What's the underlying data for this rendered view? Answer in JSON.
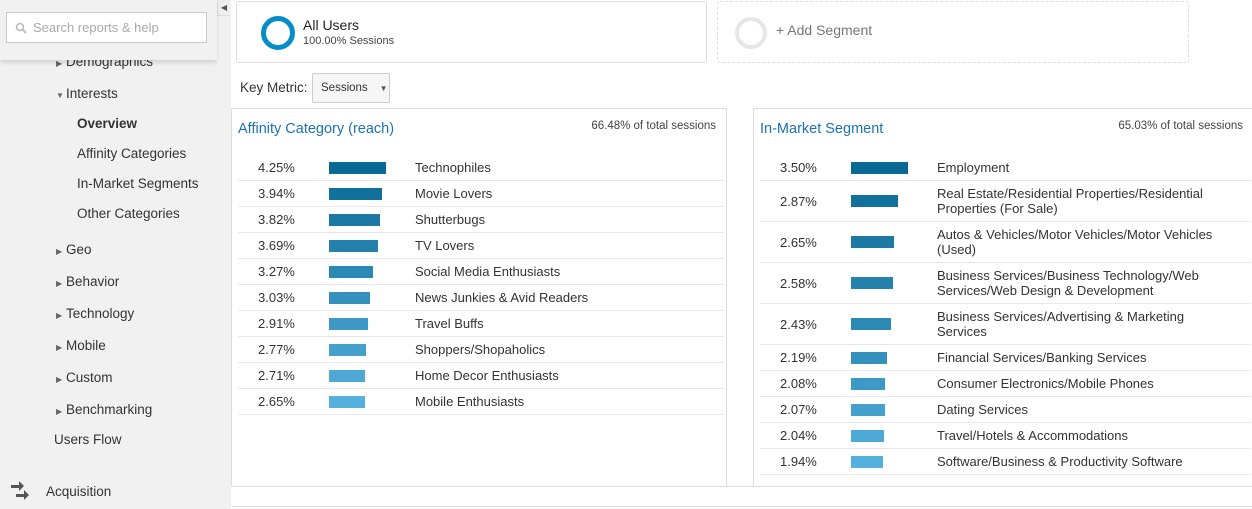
{
  "sidebar": {
    "search_placeholder": "Search reports & help",
    "items": [
      {
        "label": "Demographics",
        "state": "collapsed"
      },
      {
        "label": "Interests",
        "state": "expanded"
      },
      {
        "label": "Overview",
        "active": true
      },
      {
        "label": "Affinity Categories"
      },
      {
        "label": "In-Market Segments"
      },
      {
        "label": "Other Categories"
      },
      {
        "label": "Geo",
        "state": "collapsed"
      },
      {
        "label": "Behavior",
        "state": "collapsed"
      },
      {
        "label": "Technology",
        "state": "collapsed"
      },
      {
        "label": "Mobile",
        "state": "collapsed"
      },
      {
        "label": "Custom",
        "state": "collapsed"
      },
      {
        "label": "Benchmarking",
        "state": "collapsed"
      },
      {
        "label": "Users Flow"
      }
    ],
    "acquisition": "Acquisition"
  },
  "segments": {
    "all_users": "All Users",
    "all_users_sub": "100.00% Sessions",
    "add": "+ Add Segment"
  },
  "key_metric": {
    "label": "Key Metric:",
    "value": "Sessions"
  },
  "colors": {
    "accent": "#058dc7",
    "bar_dark": "#0a6994",
    "bar_light": "#56b0dd"
  },
  "affinity": {
    "title": "Affinity Category (reach)",
    "subtitle": "66.48% of total sessions",
    "rows": [
      {
        "pct": "4.25%",
        "value": 4.25,
        "label": "Technophiles"
      },
      {
        "pct": "3.94%",
        "value": 3.94,
        "label": "Movie Lovers"
      },
      {
        "pct": "3.82%",
        "value": 3.82,
        "label": "Shutterbugs"
      },
      {
        "pct": "3.69%",
        "value": 3.69,
        "label": "TV Lovers"
      },
      {
        "pct": "3.27%",
        "value": 3.27,
        "label": "Social Media Enthusiasts"
      },
      {
        "pct": "3.03%",
        "value": 3.03,
        "label": "News Junkies & Avid Readers"
      },
      {
        "pct": "2.91%",
        "value": 2.91,
        "label": "Travel Buffs"
      },
      {
        "pct": "2.77%",
        "value": 2.77,
        "label": "Shoppers/Shopaholics"
      },
      {
        "pct": "2.71%",
        "value": 2.71,
        "label": "Home Decor Enthusiasts"
      },
      {
        "pct": "2.65%",
        "value": 2.65,
        "label": "Mobile Enthusiasts"
      }
    ]
  },
  "inmarket": {
    "title": "In-Market Segment",
    "subtitle": "65.03% of total sessions",
    "rows": [
      {
        "pct": "3.50%",
        "value": 3.5,
        "label": "Employment"
      },
      {
        "pct": "2.87%",
        "value": 2.87,
        "label": "Real Estate/Residential Properties/Residential Properties (For Sale)"
      },
      {
        "pct": "2.65%",
        "value": 2.65,
        "label": "Autos & Vehicles/Motor Vehicles/Motor Vehicles (Used)"
      },
      {
        "pct": "2.58%",
        "value": 2.58,
        "label": "Business Services/Business Technology/Web Services/Web Design & Development"
      },
      {
        "pct": "2.43%",
        "value": 2.43,
        "label": "Business Services/Advertising & Marketing Services"
      },
      {
        "pct": "2.19%",
        "value": 2.19,
        "label": "Financial Services/Banking Services"
      },
      {
        "pct": "2.08%",
        "value": 2.08,
        "label": "Consumer Electronics/Mobile Phones"
      },
      {
        "pct": "2.07%",
        "value": 2.07,
        "label": "Dating Services"
      },
      {
        "pct": "2.04%",
        "value": 2.04,
        "label": "Travel/Hotels & Accommodations"
      },
      {
        "pct": "1.94%",
        "value": 1.94,
        "label": "Software/Business & Productivity Software"
      }
    ]
  }
}
